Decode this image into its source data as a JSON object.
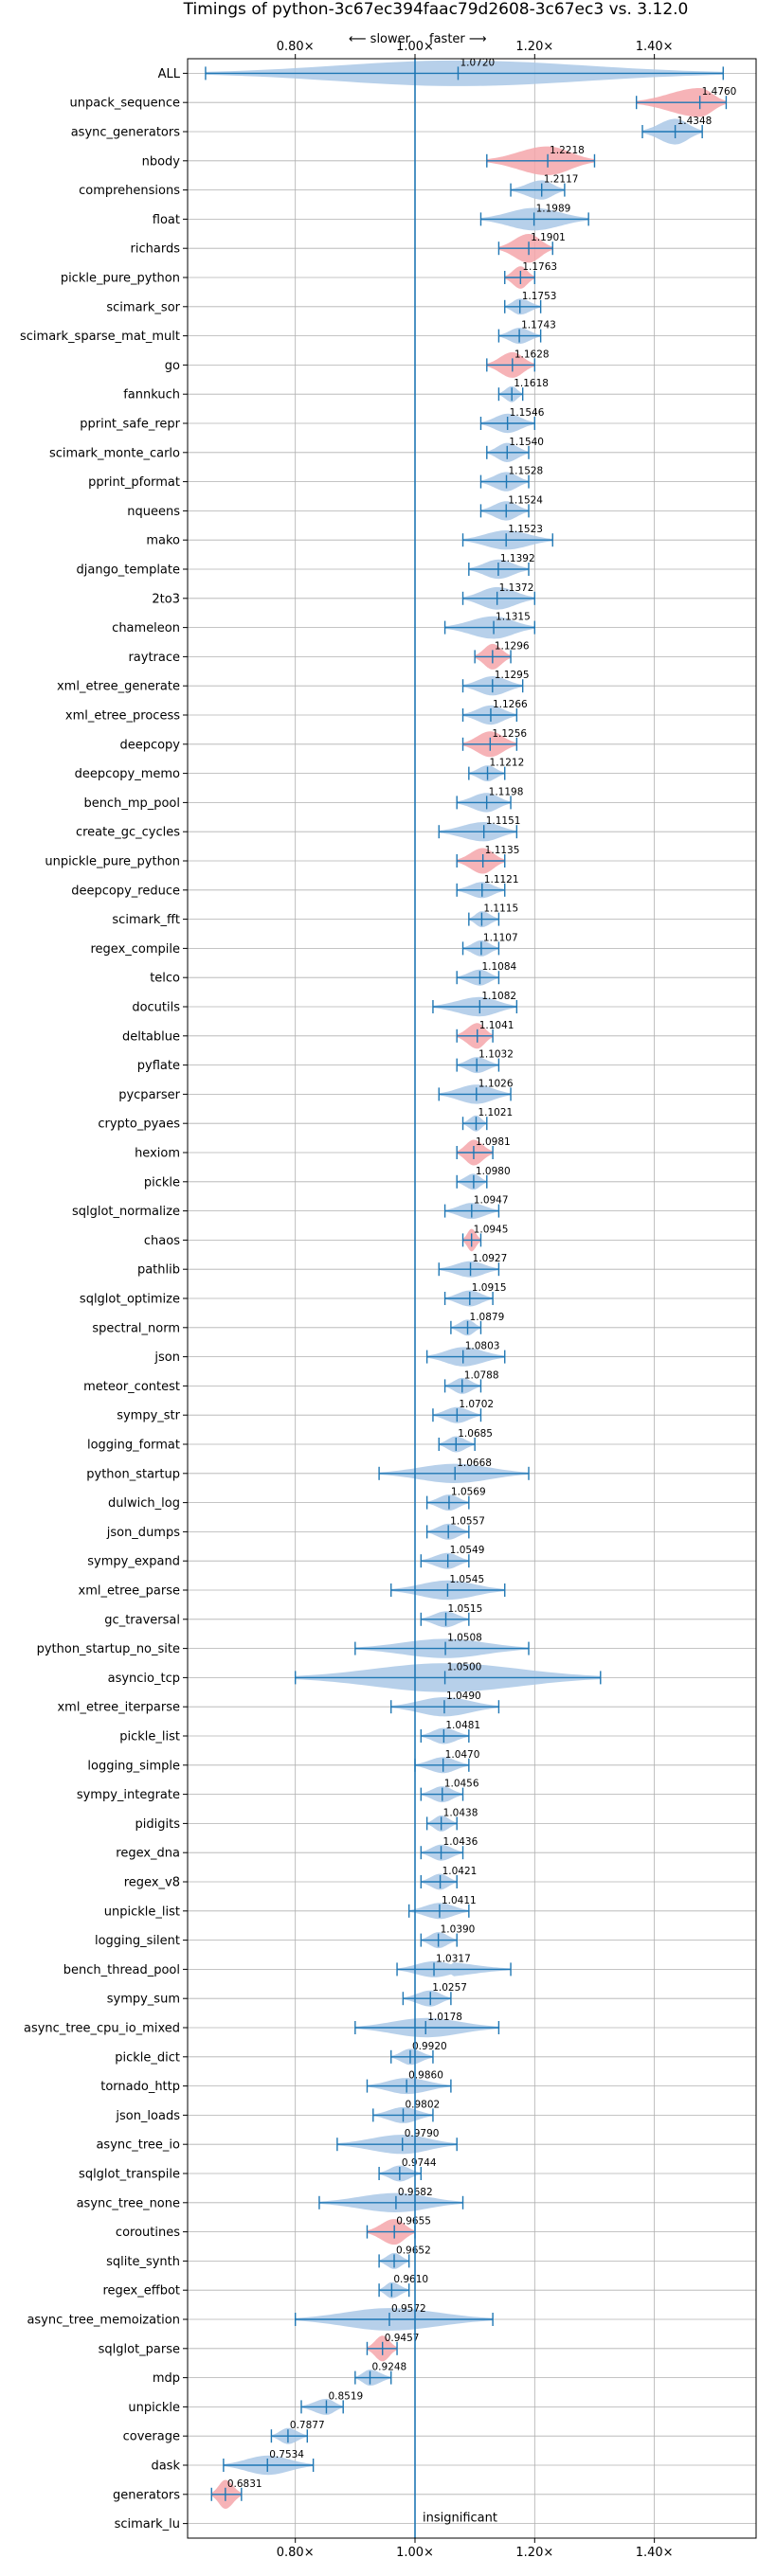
{
  "chart_data": {
    "type": "violin",
    "title": "Timings of python-3c67ec394faac79d2608-3c67ec3 vs. 3.12.0",
    "annotation_slower": "⟵ slower",
    "annotation_faster": "faster ⟶",
    "xlim": [
      0.62,
      1.57
    ],
    "xticks": [
      0.8,
      1.0,
      1.2,
      1.4
    ],
    "xtick_labels": [
      "0.80×",
      "1.00×",
      "1.20×",
      "1.40×"
    ],
    "grid": true,
    "reference_line": 1.0,
    "colors": {
      "fill": "#aac8e6",
      "fill_slow": "#f4a6aa",
      "line": "#1f77b4"
    },
    "insignificant_label": "insignificant",
    "benchmarks": [
      {
        "name": "ALL",
        "value": "1.0720",
        "mean": 1.072,
        "low": 0.65,
        "high": 1.515,
        "w": 0.8,
        "slow": false
      },
      {
        "name": "unpack_sequence",
        "value": "1.4760",
        "mean": 1.476,
        "low": 1.37,
        "high": 1.52,
        "w": 0.9,
        "slow": true
      },
      {
        "name": "async_generators",
        "value": "1.4348",
        "mean": 1.4348,
        "low": 1.38,
        "high": 1.48,
        "w": 0.8,
        "slow": false
      },
      {
        "name": "nbody",
        "value": "1.2218",
        "mean": 1.2218,
        "low": 1.12,
        "high": 1.3,
        "w": 0.9,
        "slow": true
      },
      {
        "name": "comprehensions",
        "value": "1.2117",
        "mean": 1.2117,
        "low": 1.16,
        "high": 1.25,
        "w": 0.6,
        "slow": false
      },
      {
        "name": "float",
        "value": "1.1989",
        "mean": 1.1989,
        "low": 1.11,
        "high": 1.29,
        "w": 0.7,
        "slow": false
      },
      {
        "name": "richards",
        "value": "1.1901",
        "mean": 1.1901,
        "low": 1.14,
        "high": 1.23,
        "w": 0.9,
        "slow": true
      },
      {
        "name": "pickle_pure_python",
        "value": "1.1763",
        "mean": 1.1763,
        "low": 1.15,
        "high": 1.2,
        "w": 0.7,
        "slow": true
      },
      {
        "name": "scimark_sor",
        "value": "1.1753",
        "mean": 1.1753,
        "low": 1.15,
        "high": 1.21,
        "w": 0.5,
        "slow": false
      },
      {
        "name": "scimark_sparse_mat_mult",
        "value": "1.1743",
        "mean": 1.1743,
        "low": 1.14,
        "high": 1.21,
        "w": 0.5,
        "slow": false
      },
      {
        "name": "go",
        "value": "1.1628",
        "mean": 1.1628,
        "low": 1.12,
        "high": 1.2,
        "w": 0.8,
        "slow": true
      },
      {
        "name": "fannkuch",
        "value": "1.1618",
        "mean": 1.1618,
        "low": 1.14,
        "high": 1.18,
        "w": 0.5,
        "slow": false
      },
      {
        "name": "pprint_safe_repr",
        "value": "1.1546",
        "mean": 1.1546,
        "low": 1.11,
        "high": 1.2,
        "w": 0.6,
        "slow": false
      },
      {
        "name": "scimark_monte_carlo",
        "value": "1.1540",
        "mean": 1.154,
        "low": 1.12,
        "high": 1.19,
        "w": 0.6,
        "slow": false
      },
      {
        "name": "pprint_pformat",
        "value": "1.1528",
        "mean": 1.1528,
        "low": 1.11,
        "high": 1.19,
        "w": 0.6,
        "slow": false
      },
      {
        "name": "nqueens",
        "value": "1.1524",
        "mean": 1.1524,
        "low": 1.11,
        "high": 1.19,
        "w": 0.6,
        "slow": false
      },
      {
        "name": "mako",
        "value": "1.1523",
        "mean": 1.1523,
        "low": 1.08,
        "high": 1.23,
        "w": 0.6,
        "slow": false
      },
      {
        "name": "django_template",
        "value": "1.1392",
        "mean": 1.1392,
        "low": 1.09,
        "high": 1.19,
        "w": 0.6,
        "slow": false
      },
      {
        "name": "2to3",
        "value": "1.1372",
        "mean": 1.1372,
        "low": 1.08,
        "high": 1.2,
        "w": 0.7,
        "slow": false
      },
      {
        "name": "chameleon",
        "value": "1.1315",
        "mean": 1.1315,
        "low": 1.05,
        "high": 1.2,
        "w": 0.7,
        "slow": false
      },
      {
        "name": "raytrace",
        "value": "1.1296",
        "mean": 1.1296,
        "low": 1.1,
        "high": 1.16,
        "w": 0.8,
        "slow": true
      },
      {
        "name": "xml_etree_generate",
        "value": "1.1295",
        "mean": 1.1295,
        "low": 1.08,
        "high": 1.18,
        "w": 0.6,
        "slow": false
      },
      {
        "name": "xml_etree_process",
        "value": "1.1266",
        "mean": 1.1266,
        "low": 1.08,
        "high": 1.17,
        "w": 0.6,
        "slow": false
      },
      {
        "name": "deepcopy",
        "value": "1.1256",
        "mean": 1.1256,
        "low": 1.08,
        "high": 1.17,
        "w": 0.8,
        "slow": true
      },
      {
        "name": "deepcopy_memo",
        "value": "1.1212",
        "mean": 1.1212,
        "low": 1.09,
        "high": 1.15,
        "w": 0.5,
        "slow": false
      },
      {
        "name": "bench_mp_pool",
        "value": "1.1198",
        "mean": 1.1198,
        "low": 1.07,
        "high": 1.16,
        "w": 0.6,
        "slow": false
      },
      {
        "name": "create_gc_cycles",
        "value": "1.1151",
        "mean": 1.1151,
        "low": 1.04,
        "high": 1.17,
        "w": 0.6,
        "slow": false
      },
      {
        "name": "unpickle_pure_python",
        "value": "1.1135",
        "mean": 1.1135,
        "low": 1.07,
        "high": 1.15,
        "w": 0.8,
        "slow": true
      },
      {
        "name": "deepcopy_reduce",
        "value": "1.1121",
        "mean": 1.1121,
        "low": 1.07,
        "high": 1.15,
        "w": 0.5,
        "slow": false
      },
      {
        "name": "scimark_fft",
        "value": "1.1115",
        "mean": 1.1115,
        "low": 1.09,
        "high": 1.14,
        "w": 0.5,
        "slow": false
      },
      {
        "name": "regex_compile",
        "value": "1.1107",
        "mean": 1.1107,
        "low": 1.08,
        "high": 1.14,
        "w": 0.5,
        "slow": false
      },
      {
        "name": "telco",
        "value": "1.1084",
        "mean": 1.1084,
        "low": 1.07,
        "high": 1.14,
        "w": 0.5,
        "slow": false
      },
      {
        "name": "docutils",
        "value": "1.1082",
        "mean": 1.1082,
        "low": 1.03,
        "high": 1.17,
        "w": 0.6,
        "slow": false
      },
      {
        "name": "deltablue",
        "value": "1.1041",
        "mean": 1.1041,
        "low": 1.07,
        "high": 1.13,
        "w": 0.8,
        "slow": true
      },
      {
        "name": "pyflate",
        "value": "1.1032",
        "mean": 1.1032,
        "low": 1.07,
        "high": 1.14,
        "w": 0.5,
        "slow": false
      },
      {
        "name": "pycparser",
        "value": "1.1026",
        "mean": 1.1026,
        "low": 1.04,
        "high": 1.16,
        "w": 0.6,
        "slow": false
      },
      {
        "name": "crypto_pyaes",
        "value": "1.1021",
        "mean": 1.1021,
        "low": 1.08,
        "high": 1.12,
        "w": 0.5,
        "slow": false
      },
      {
        "name": "hexiom",
        "value": "1.0981",
        "mean": 1.0981,
        "low": 1.07,
        "high": 1.13,
        "w": 0.8,
        "slow": true
      },
      {
        "name": "pickle",
        "value": "1.0980",
        "mean": 1.098,
        "low": 1.07,
        "high": 1.12,
        "w": 0.5,
        "slow": false
      },
      {
        "name": "sqlglot_normalize",
        "value": "1.0947",
        "mean": 1.0947,
        "low": 1.05,
        "high": 1.14,
        "w": 0.5,
        "slow": false
      },
      {
        "name": "chaos",
        "value": "1.0945",
        "mean": 1.0945,
        "low": 1.08,
        "high": 1.11,
        "w": 0.7,
        "slow": true
      },
      {
        "name": "pathlib",
        "value": "1.0927",
        "mean": 1.0927,
        "low": 1.04,
        "high": 1.14,
        "w": 0.5,
        "slow": false
      },
      {
        "name": "sqlglot_optimize",
        "value": "1.0915",
        "mean": 1.0915,
        "low": 1.05,
        "high": 1.13,
        "w": 0.5,
        "slow": false
      },
      {
        "name": "spectral_norm",
        "value": "1.0879",
        "mean": 1.0879,
        "low": 1.06,
        "high": 1.11,
        "w": 0.5,
        "slow": false
      },
      {
        "name": "json",
        "value": "1.0803",
        "mean": 1.0803,
        "low": 1.02,
        "high": 1.15,
        "w": 0.6,
        "slow": false
      },
      {
        "name": "meteor_contest",
        "value": "1.0788",
        "mean": 1.0788,
        "low": 1.05,
        "high": 1.11,
        "w": 0.5,
        "slow": false
      },
      {
        "name": "sympy_str",
        "value": "1.0702",
        "mean": 1.0702,
        "low": 1.03,
        "high": 1.11,
        "w": 0.5,
        "slow": false
      },
      {
        "name": "logging_format",
        "value": "1.0685",
        "mean": 1.0685,
        "low": 1.04,
        "high": 1.1,
        "w": 0.5,
        "slow": false
      },
      {
        "name": "python_startup",
        "value": "1.0668",
        "mean": 1.0668,
        "low": 0.94,
        "high": 1.19,
        "w": 0.6,
        "slow": false
      },
      {
        "name": "dulwich_log",
        "value": "1.0569",
        "mean": 1.0569,
        "low": 1.02,
        "high": 1.09,
        "w": 0.5,
        "slow": false
      },
      {
        "name": "json_dumps",
        "value": "1.0557",
        "mean": 1.0557,
        "low": 1.02,
        "high": 1.09,
        "w": 0.5,
        "slow": false
      },
      {
        "name": "sympy_expand",
        "value": "1.0549",
        "mean": 1.0549,
        "low": 1.01,
        "high": 1.09,
        "w": 0.5,
        "slow": false
      },
      {
        "name": "xml_etree_parse",
        "value": "1.0545",
        "mean": 1.0545,
        "low": 0.96,
        "high": 1.15,
        "w": 0.6,
        "slow": false
      },
      {
        "name": "gc_traversal",
        "value": "1.0515",
        "mean": 1.0515,
        "low": 1.01,
        "high": 1.09,
        "w": 0.5,
        "slow": false
      },
      {
        "name": "python_startup_no_site",
        "value": "1.0508",
        "mean": 1.0508,
        "low": 0.9,
        "high": 1.19,
        "w": 0.6,
        "slow": false
      },
      {
        "name": "asyncio_tcp",
        "value": "1.0500",
        "mean": 1.05,
        "low": 0.8,
        "high": 1.31,
        "w": 0.9,
        "slow": false
      },
      {
        "name": "xml_etree_iterparse",
        "value": "1.0490",
        "mean": 1.049,
        "low": 0.96,
        "high": 1.14,
        "w": 0.6,
        "slow": false
      },
      {
        "name": "pickle_list",
        "value": "1.0481",
        "mean": 1.0481,
        "low": 1.01,
        "high": 1.09,
        "w": 0.5,
        "slow": false
      },
      {
        "name": "logging_simple",
        "value": "1.0470",
        "mean": 1.047,
        "low": 1.0,
        "high": 1.09,
        "w": 0.5,
        "slow": false
      },
      {
        "name": "sympy_integrate",
        "value": "1.0456",
        "mean": 1.0456,
        "low": 1.01,
        "high": 1.08,
        "w": 0.5,
        "slow": false
      },
      {
        "name": "pidigits",
        "value": "1.0438",
        "mean": 1.0438,
        "low": 1.02,
        "high": 1.07,
        "w": 0.5,
        "slow": false
      },
      {
        "name": "regex_dna",
        "value": "1.0436",
        "mean": 1.0436,
        "low": 1.01,
        "high": 1.08,
        "w": 0.5,
        "slow": false
      },
      {
        "name": "regex_v8",
        "value": "1.0421",
        "mean": 1.0421,
        "low": 1.01,
        "high": 1.07,
        "w": 0.5,
        "slow": false
      },
      {
        "name": "unpickle_list",
        "value": "1.0411",
        "mean": 1.0411,
        "low": 0.99,
        "high": 1.09,
        "w": 0.5,
        "slow": false
      },
      {
        "name": "logging_silent",
        "value": "1.0390",
        "mean": 1.039,
        "low": 1.01,
        "high": 1.07,
        "w": 0.5,
        "slow": false
      },
      {
        "name": "bench_thread_pool",
        "value": "1.0317",
        "mean": 1.0317,
        "low": 0.97,
        "high": 1.16,
        "w": 0.5,
        "slow": false
      },
      {
        "name": "sympy_sum",
        "value": "1.0257",
        "mean": 1.0257,
        "low": 0.98,
        "high": 1.06,
        "w": 0.5,
        "slow": false
      },
      {
        "name": "async_tree_cpu_io_mixed",
        "value": "1.0178",
        "mean": 1.0178,
        "low": 0.9,
        "high": 1.14,
        "w": 0.6,
        "slow": false
      },
      {
        "name": "pickle_dict",
        "value": "0.9920",
        "mean": 0.992,
        "low": 0.96,
        "high": 1.03,
        "w": 0.5,
        "slow": false
      },
      {
        "name": "tornado_http",
        "value": "0.9860",
        "mean": 0.986,
        "low": 0.92,
        "high": 1.06,
        "w": 0.5,
        "slow": false
      },
      {
        "name": "json_loads",
        "value": "0.9802",
        "mean": 0.9802,
        "low": 0.93,
        "high": 1.03,
        "w": 0.5,
        "slow": false
      },
      {
        "name": "async_tree_io",
        "value": "0.9790",
        "mean": 0.979,
        "low": 0.87,
        "high": 1.07,
        "w": 0.6,
        "slow": false
      },
      {
        "name": "sqlglot_transpile",
        "value": "0.9744",
        "mean": 0.9744,
        "low": 0.94,
        "high": 1.01,
        "w": 0.5,
        "slow": false
      },
      {
        "name": "async_tree_none",
        "value": "0.9682",
        "mean": 0.9682,
        "low": 0.84,
        "high": 1.08,
        "w": 0.6,
        "slow": false
      },
      {
        "name": "coroutines",
        "value": "0.9655",
        "mean": 0.9655,
        "low": 0.92,
        "high": 1.0,
        "w": 0.8,
        "slow": true
      },
      {
        "name": "sqlite_synth",
        "value": "0.9652",
        "mean": 0.9652,
        "low": 0.94,
        "high": 0.99,
        "w": 0.5,
        "slow": false
      },
      {
        "name": "regex_effbot",
        "value": "0.9610",
        "mean": 0.961,
        "low": 0.94,
        "high": 0.99,
        "w": 0.5,
        "slow": false
      },
      {
        "name": "async_tree_memoization",
        "value": "0.9572",
        "mean": 0.9572,
        "low": 0.8,
        "high": 1.13,
        "w": 0.7,
        "slow": false
      },
      {
        "name": "sqlglot_parse",
        "value": "0.9457",
        "mean": 0.9457,
        "low": 0.92,
        "high": 0.97,
        "w": 0.8,
        "slow": true
      },
      {
        "name": "mdp",
        "value": "0.9248",
        "mean": 0.9248,
        "low": 0.9,
        "high": 0.96,
        "w": 0.5,
        "slow": false
      },
      {
        "name": "unpickle",
        "value": "0.8519",
        "mean": 0.8519,
        "low": 0.81,
        "high": 0.88,
        "w": 0.5,
        "slow": false
      },
      {
        "name": "coverage",
        "value": "0.7877",
        "mean": 0.7877,
        "low": 0.76,
        "high": 0.82,
        "w": 0.5,
        "slow": false
      },
      {
        "name": "dask",
        "value": "0.7534",
        "mean": 0.7534,
        "low": 0.68,
        "high": 0.83,
        "w": 0.6,
        "slow": false
      },
      {
        "name": "generators",
        "value": "0.6831",
        "mean": 0.6831,
        "low": 0.66,
        "high": 0.71,
        "w": 0.9,
        "slow": true
      },
      {
        "name": "scimark_lu",
        "value": null,
        "mean": null,
        "low": null,
        "high": null,
        "w": 0,
        "slow": false
      }
    ]
  }
}
